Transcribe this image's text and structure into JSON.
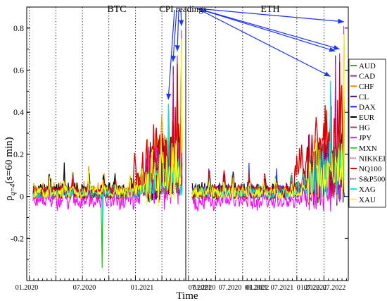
{
  "chart_data": {
    "type": "line",
    "panels": [
      {
        "name": "BTC"
      },
      {
        "name": "ETH"
      }
    ],
    "xlabel": "Time",
    "ylabel_main": "ρ",
    "ylabel_sub": "q=4",
    "ylabel_rest": "(s=60 min)",
    "ylim": [
      -0.4,
      0.9
    ],
    "yticks": [
      -0.2,
      0,
      0.2,
      0.4,
      0.6,
      0.8
    ],
    "ytick_labels": [
      "-0.2",
      "0",
      "0.2",
      "0.4",
      "0.6",
      "0.8"
    ],
    "x_range": [
      "2019-12",
      "2022-12"
    ],
    "xtick_labels": [
      "01.2020",
      "07.2020",
      "01.2021",
      "07.2021",
      "01.2022",
      "07.2022"
    ],
    "xtick_positions": [
      0.0,
      0.5,
      1.0,
      1.5,
      2.0,
      2.5
    ],
    "minor_x_step_months": 1,
    "vertical_dotted_lines": true,
    "annotation": {
      "text": "CPI readings",
      "targets_btc": [
        [
          2.62,
          0.46
        ],
        [
          2.71,
          0.64
        ],
        [
          2.79,
          0.69
        ],
        [
          2.87,
          0.81
        ]
      ],
      "targets_eth": [
        [
          2.62,
          0.57
        ],
        [
          2.71,
          0.69
        ],
        [
          2.79,
          0.7
        ],
        [
          2.87,
          0.83
        ]
      ]
    },
    "legend": "right-outside",
    "series": [
      {
        "name": "AUD",
        "color": "#00cc00",
        "dash": "solid"
      },
      {
        "name": "CAD",
        "color": "#7a33cc",
        "dash": "solid"
      },
      {
        "name": "CHF",
        "color": "#ff8c00",
        "dash": "solid"
      },
      {
        "name": "CL",
        "color": "#4b0082",
        "dash": "solid"
      },
      {
        "name": "DAX",
        "color": "#1a1aff",
        "dash": "solid"
      },
      {
        "name": "EUR",
        "color": "#000000",
        "dash": "solid"
      },
      {
        "name": "HG",
        "color": "#b0306f",
        "dash": "solid"
      },
      {
        "name": "JPY",
        "color": "#ff00ff",
        "dash": "solid"
      },
      {
        "name": "MXN",
        "color": "#33cc33",
        "dash": "solid"
      },
      {
        "name": "NIKKEI",
        "color": "#cc1f7a",
        "dash": "dotted"
      },
      {
        "name": "NQ100",
        "color": "#e00000",
        "dash": "solid"
      },
      {
        "name": "S&P500",
        "color": "#b5003c",
        "dash": "dotted"
      },
      {
        "name": "XAG",
        "color": "#00e5e5",
        "dash": "solid"
      },
      {
        "name": "XAU",
        "color": "#ffff00",
        "dash": "solid"
      }
    ],
    "grid": false
  }
}
